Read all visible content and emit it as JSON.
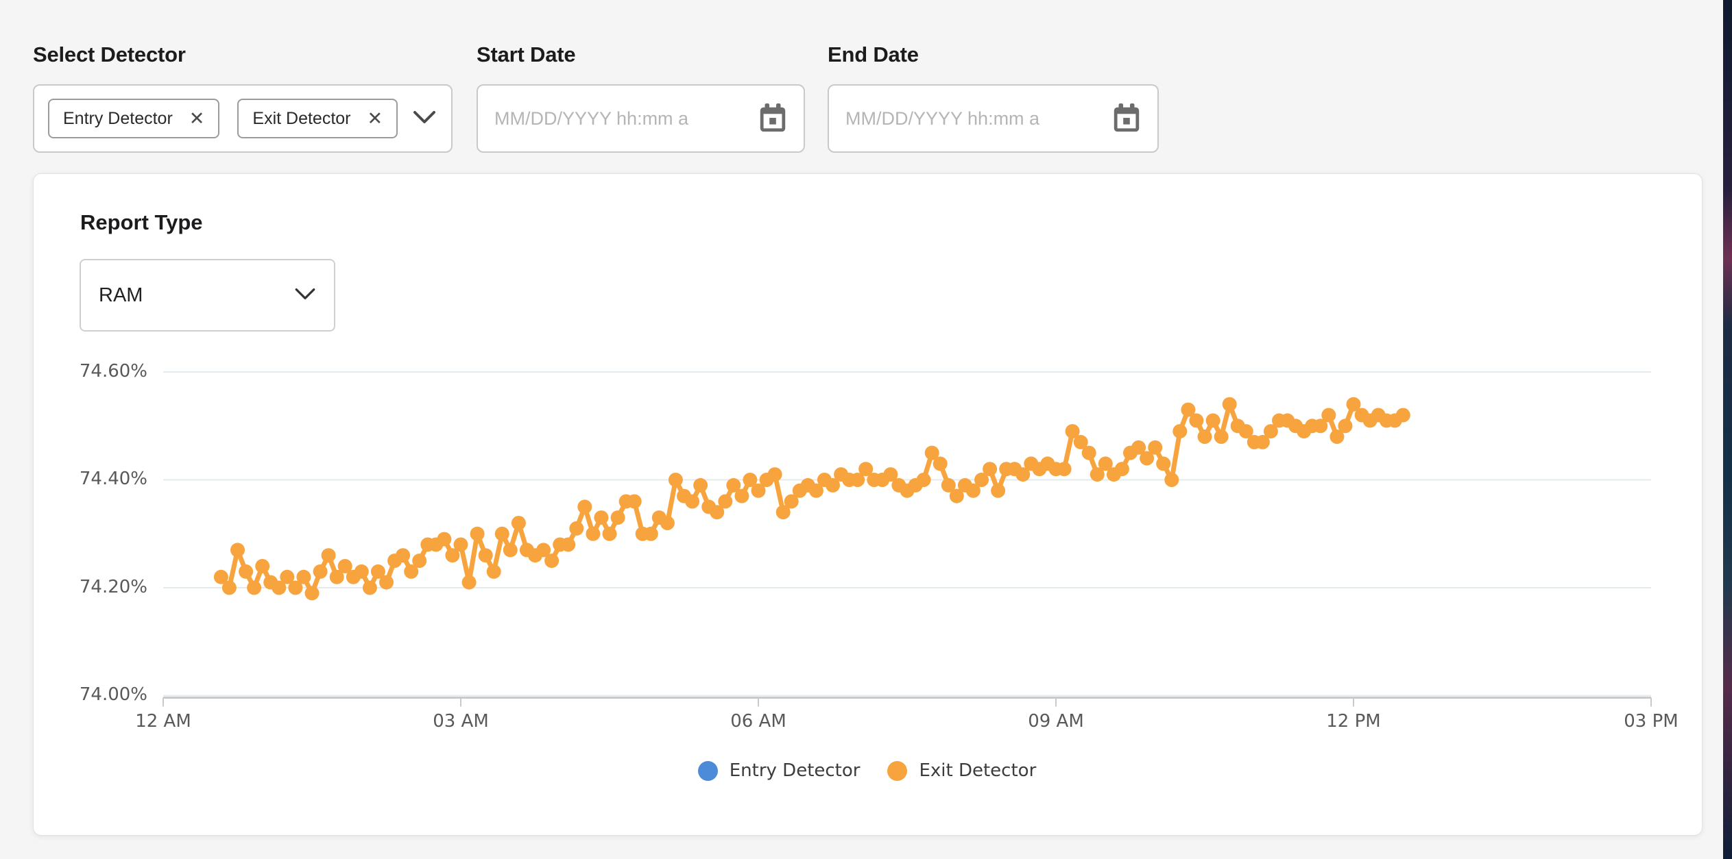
{
  "filters": {
    "select_detector": {
      "label": "Select Detector",
      "chips": [
        {
          "label": "Entry Detector"
        },
        {
          "label": "Exit Detector"
        }
      ]
    },
    "start_date": {
      "label": "Start Date",
      "placeholder": "MM/DD/YYYY hh:mm a"
    },
    "end_date": {
      "label": "End Date",
      "placeholder": "MM/DD/YYYY hh:mm a"
    }
  },
  "report": {
    "label": "Report Type",
    "selected": "RAM"
  },
  "icons": {
    "close": "✕",
    "chevron_down": "chevron-down",
    "calendar": "calendar"
  },
  "colors": {
    "entry_detector": "#4d8bd9",
    "exit_detector": "#f8a43e",
    "gridline": "#e3ebef",
    "axis_line": "#c9c9c9",
    "tick_text": "#58595b"
  },
  "chart_data": {
    "type": "line",
    "title": "",
    "xlabel": "",
    "ylabel": "",
    "ylim": [
      74.0,
      74.6
    ],
    "y_ticks": [
      "74.60%",
      "74.40%",
      "74.20%",
      "74.00%"
    ],
    "y_tick_values": [
      74.6,
      74.4,
      74.2,
      74.0
    ],
    "x_ticks": [
      "12 AM",
      "03 AM",
      "06 AM",
      "09 AM",
      "12 PM",
      "03 PM"
    ],
    "x_tick_hours": [
      0,
      3,
      6,
      9,
      12,
      15
    ],
    "grid": "horizontal",
    "legend_position": "bottom",
    "series": [
      {
        "name": "Entry Detector",
        "color": "#4d8bd9",
        "values": []
      },
      {
        "name": "Exit Detector",
        "color": "#f8a43e",
        "start_time": "12:35 AM",
        "interval_minutes": 5,
        "unit": "%",
        "values": [
          74.22,
          74.2,
          74.27,
          74.23,
          74.2,
          74.24,
          74.21,
          74.2,
          74.22,
          74.2,
          74.22,
          74.19,
          74.23,
          74.26,
          74.22,
          74.24,
          74.22,
          74.23,
          74.2,
          74.23,
          74.21,
          74.25,
          74.26,
          74.23,
          74.25,
          74.28,
          74.28,
          74.29,
          74.26,
          74.28,
          74.21,
          74.3,
          74.26,
          74.23,
          74.3,
          74.27,
          74.32,
          74.27,
          74.26,
          74.27,
          74.25,
          74.28,
          74.28,
          74.31,
          74.35,
          74.3,
          74.33,
          74.3,
          74.33,
          74.36,
          74.36,
          74.3,
          74.3,
          74.33,
          74.32,
          74.4,
          74.37,
          74.36,
          74.39,
          74.35,
          74.34,
          74.36,
          74.39,
          74.37,
          74.4,
          74.38,
          74.4,
          74.41,
          74.34,
          74.36,
          74.38,
          74.39,
          74.38,
          74.4,
          74.39,
          74.41,
          74.4,
          74.4,
          74.42,
          74.4,
          74.4,
          74.41,
          74.39,
          74.38,
          74.39,
          74.4,
          74.45,
          74.43,
          74.39,
          74.37,
          74.39,
          74.38,
          74.4,
          74.42,
          74.38,
          74.42,
          74.42,
          74.41,
          74.43,
          74.42,
          74.43,
          74.42,
          74.42,
          74.49,
          74.47,
          74.45,
          74.41,
          74.43,
          74.41,
          74.42,
          74.45,
          74.46,
          74.44,
          74.46,
          74.43,
          74.4,
          74.49,
          74.53,
          74.51,
          74.48,
          74.51,
          74.48,
          74.54,
          74.5,
          74.49,
          74.47,
          74.47,
          74.49,
          74.51,
          74.51,
          74.5,
          74.49,
          74.5,
          74.5,
          74.52,
          74.48,
          74.5,
          74.54,
          74.52,
          74.51,
          74.52,
          74.51,
          74.51,
          74.52
        ]
      }
    ]
  }
}
